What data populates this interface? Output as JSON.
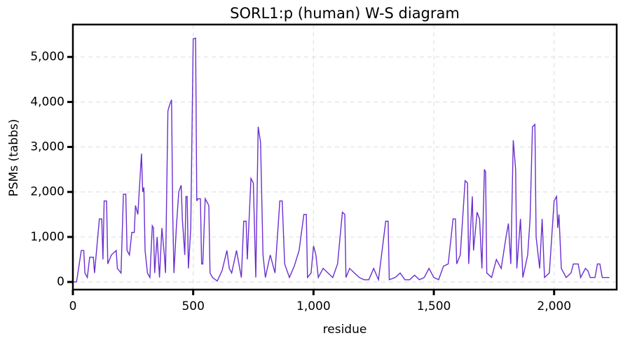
{
  "chart_data": {
    "type": "line",
    "title": "SORL1:p (human) W-S diagram",
    "xlabel": "residue",
    "ylabel": "PSMs (tabbs)",
    "xlim": [
      0,
      2260
    ],
    "ylim": [
      -170,
      5720
    ],
    "xticks": [
      0,
      500,
      {
        "value": 1000,
        "label": "1,000"
      },
      {
        "value": 1500,
        "label": "1,500"
      },
      {
        "value": 2000,
        "label": "2,000"
      }
    ],
    "yticks": [
      0,
      {
        "value": 1000,
        "label": "1,000"
      },
      {
        "value": 2000,
        "label": "2,000"
      },
      {
        "value": 3000,
        "label": "3,000"
      },
      {
        "value": 4000,
        "label": "4,000"
      },
      {
        "value": 5000,
        "label": "5,000"
      }
    ],
    "grid": true,
    "series": [
      {
        "name": "PSMs",
        "color": "#6a2fd0",
        "x": [
          0,
          15,
          25,
          35,
          45,
          50,
          60,
          70,
          85,
          90,
          110,
          120,
          125,
          130,
          140,
          145,
          160,
          180,
          185,
          200,
          210,
          220,
          225,
          235,
          245,
          255,
          260,
          270,
          285,
          290,
          295,
          300,
          310,
          320,
          330,
          335,
          340,
          350,
          360,
          370,
          380,
          385,
          395,
          400,
          410,
          415,
          420,
          430,
          440,
          450,
          455,
          465,
          470,
          475,
          480,
          490,
          500,
          510,
          515,
          520,
          530,
          535,
          540,
          550,
          565,
          570,
          580,
          600,
          620,
          640,
          650,
          660,
          680,
          690,
          700,
          710,
          720,
          725,
          740,
          750,
          760,
          770,
          780,
          790,
          800,
          820,
          840,
          860,
          870,
          880,
          900,
          920,
          940,
          960,
          970,
          975,
          990,
          1000,
          1010,
          1020,
          1040,
          1060,
          1080,
          1100,
          1120,
          1130,
          1135,
          1150,
          1170,
          1190,
          1210,
          1230,
          1250,
          1270,
          1300,
          1310,
          1315,
          1340,
          1360,
          1380,
          1400,
          1420,
          1440,
          1460,
          1480,
          1500,
          1520,
          1540,
          1560,
          1580,
          1590,
          1595,
          1610,
          1630,
          1640,
          1645,
          1660,
          1665,
          1680,
          1690,
          1700,
          1710,
          1715,
          1720,
          1740,
          1760,
          1780,
          1800,
          1810,
          1820,
          1830,
          1840,
          1845,
          1860,
          1870,
          1890,
          1900,
          1910,
          1920,
          1925,
          1940,
          1950,
          1960,
          1980,
          2000,
          2010,
          2015,
          2020,
          2030,
          2050,
          2070,
          2080,
          2100,
          2110,
          2130,
          2140,
          2150,
          2170,
          2180,
          2190,
          2200,
          2230
        ],
        "values": [
          0,
          0,
          350,
          700,
          700,
          200,
          100,
          550,
          550,
          200,
          1400,
          1400,
          500,
          1800,
          1800,
          400,
          600,
          700,
          300,
          200,
          1950,
          1950,
          700,
          600,
          1100,
          1100,
          1700,
          1500,
          2850,
          2000,
          2100,
          700,
          200,
          100,
          1250,
          1200,
          200,
          1000,
          100,
          1200,
          600,
          200,
          3800,
          3900,
          4050,
          1500,
          200,
          1200,
          2000,
          2150,
          1400,
          600,
          1900,
          1900,
          300,
          1200,
          5400,
          5420,
          1800,
          1850,
          1850,
          400,
          400,
          1850,
          1700,
          200,
          100,
          20,
          250,
          700,
          300,
          200,
          700,
          400,
          100,
          1350,
          1350,
          500,
          2300,
          2200,
          100,
          3450,
          3100,
          600,
          100,
          600,
          200,
          1800,
          1800,
          400,
          100,
          350,
          700,
          1500,
          1500,
          100,
          200,
          800,
          600,
          100,
          300,
          200,
          100,
          400,
          1550,
          1500,
          100,
          300,
          200,
          100,
          50,
          50,
          300,
          50,
          1350,
          1350,
          50,
          100,
          200,
          50,
          50,
          150,
          50,
          100,
          300,
          100,
          50,
          350,
          400,
          1400,
          1400,
          400,
          600,
          2250,
          2200,
          400,
          1900,
          700,
          1550,
          1400,
          300,
          2500,
          2450,
          200,
          100,
          500,
          300,
          1000,
          1300,
          400,
          3150,
          2500,
          300,
          1400,
          100,
          600,
          1400,
          3450,
          3500,
          1000,
          300,
          1400,
          100,
          200,
          1800,
          1900,
          1200,
          1500,
          300,
          100,
          200,
          400,
          400,
          100,
          300,
          250,
          100,
          100,
          400,
          400,
          100,
          100
        ]
      }
    ]
  }
}
